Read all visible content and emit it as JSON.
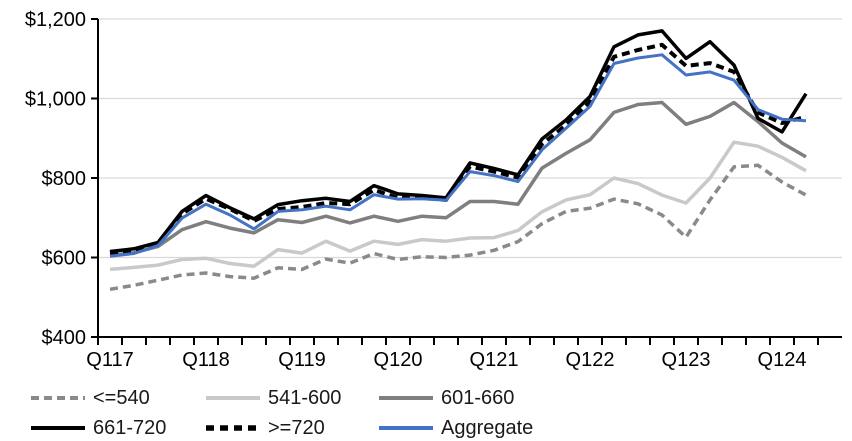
{
  "chart_data": {
    "type": "line",
    "title": "",
    "x_tick_labels": [
      "Q117",
      "Q118",
      "Q119",
      "Q120",
      "Q121",
      "Q122",
      "Q123",
      "Q124"
    ],
    "n_points": 30,
    "points_per_year": 4,
    "x_range_note": "quarterly points from Q1 2017 through Q2 2024",
    "y_axis": {
      "min": 400,
      "max": 1200,
      "step": 200,
      "tick_labels": [
        "$400",
        "$600",
        "$800",
        "$1,000",
        "$1,200"
      ]
    },
    "grid": "horizontal",
    "legend_position": "bottom",
    "colors": {
      "gridline": "#d9d9d9",
      "axis": "#000000",
      "accent_blue": "#4472c4"
    },
    "series": [
      {
        "name": "<=540",
        "color": "#8a8a8a",
        "style": "dashed",
        "values": [
          520,
          530,
          543,
          556,
          561,
          552,
          548,
          574,
          570,
          596,
          586,
          610,
          595,
          602,
          600,
          606,
          618,
          640,
          685,
          716,
          724,
          747,
          735,
          707,
          651,
          745,
          828,
          832,
          790,
          757
        ]
      },
      {
        "name": "541-600",
        "color": "#c9c9c9",
        "style": "solid",
        "values": [
          570,
          575,
          581,
          595,
          598,
          585,
          578,
          620,
          611,
          641,
          616,
          641,
          633,
          645,
          641,
          649,
          650,
          668,
          715,
          745,
          758,
          800,
          786,
          757,
          737,
          800,
          890,
          880,
          852,
          818
        ]
      },
      {
        "name": "601-660",
        "color": "#7f7f7f",
        "style": "solid",
        "values": [
          605,
          612,
          628,
          670,
          690,
          674,
          662,
          695,
          688,
          704,
          687,
          704,
          691,
          704,
          700,
          741,
          741,
          734,
          825,
          862,
          896,
          965,
          985,
          990,
          935,
          955,
          990,
          942,
          888,
          853
        ]
      },
      {
        "name": "661-720",
        "color": "#000000",
        "style": "solid",
        "values": [
          615,
          622,
          638,
          716,
          756,
          725,
          697,
          733,
          743,
          749,
          741,
          781,
          760,
          756,
          750,
          838,
          824,
          808,
          898,
          946,
          1005,
          1130,
          1160,
          1170,
          1101,
          1143,
          1084,
          950,
          916,
          1012
        ]
      },
      {
        "name": ">=720",
        "color": "#000000",
        "style": "dashed-bold",
        "values": [
          612,
          618,
          635,
          710,
          748,
          722,
          692,
          722,
          727,
          737,
          734,
          770,
          750,
          750,
          745,
          829,
          816,
          801,
          885,
          933,
          992,
          1105,
          1122,
          1135,
          1082,
          1089,
          1067,
          965,
          938,
          954
        ]
      },
      {
        "name": "Aggregate",
        "color": "#4472c4",
        "style": "solid",
        "values": [
          603,
          610,
          630,
          699,
          734,
          707,
          672,
          716,
          720,
          729,
          720,
          758,
          747,
          748,
          744,
          816,
          806,
          791,
          871,
          925,
          980,
          1088,
          1102,
          1110,
          1059,
          1067,
          1046,
          972,
          948,
          944
        ]
      }
    ]
  }
}
